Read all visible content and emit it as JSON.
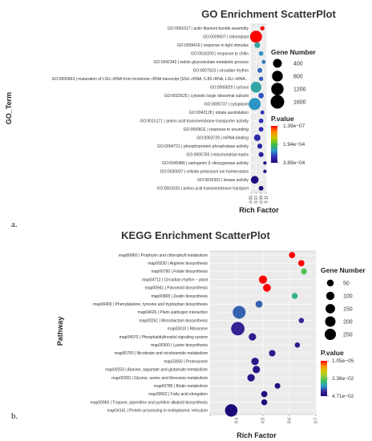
{
  "chart_data": [
    {
      "type": "scatter",
      "panel_label": "a.",
      "title": "GO Enrichment ScatterPlot",
      "xlabel": "Rich Factor",
      "ylabel": "GO_Term",
      "xlim": [
        0.05,
        0.11
      ],
      "x_ticks": [
        0.05,
        0.07,
        0.09,
        0.11
      ],
      "grid": true,
      "terms": [
        {
          "label": "GO:0051017 | actin filament bundle assembly",
          "x": 0.095,
          "gene_number": 60,
          "p_value": 1.39e-07
        },
        {
          "label": "GO:0009507 | chloroplast",
          "x": 0.07,
          "gene_number": 1600,
          "p_value": 1.39e-07
        },
        {
          "label": "GO:0009416 | response to light stimulus",
          "x": 0.075,
          "gene_number": 200,
          "p_value": 2e-05
        },
        {
          "label": "GO:0010200 | response to chitin",
          "x": 0.09,
          "gene_number": 80,
          "p_value": 3e-05
        },
        {
          "label": "GO:0042343 | indole glucosinolate metabolic process",
          "x": 0.1,
          "gene_number": 40,
          "p_value": 4e-05
        },
        {
          "label": "GO:0007623 | circadian rhythm",
          "x": 0.085,
          "gene_number": 100,
          "p_value": 5e-05
        },
        {
          "label": "GO:0000463 | maturation of LSU−rRNA from tricistronic rRNA transcript (SSU−rRNA, 5.8S rRNA, LSU−rRNA...",
          "x": 0.09,
          "gene_number": 60,
          "p_value": 6e-05
        },
        {
          "label": "GO:0005829 | cytosol",
          "x": 0.07,
          "gene_number": 1200,
          "p_value": 2e-05
        },
        {
          "label": "GO:0022625 | cytosolic large ribosomal subunit",
          "x": 0.09,
          "gene_number": 150,
          "p_value": 7e-05
        },
        {
          "label": "GO:0005737 | cytoplasm",
          "x": 0.065,
          "gene_number": 1600,
          "p_value": 3e-05
        },
        {
          "label": "GO:0042128 | nitrate assimilation",
          "x": 0.095,
          "gene_number": 40,
          "p_value": 0.0001
        },
        {
          "label": "GO:0015171 | amino acid transmembrane transporter activity",
          "x": 0.09,
          "gene_number": 80,
          "p_value": 0.00011
        },
        {
          "label": "GO:0009611 | response to wounding",
          "x": 0.09,
          "gene_number": 90,
          "p_value": 0.00012
        },
        {
          "label": "GO:0003729 | mRNA binding",
          "x": 0.075,
          "gene_number": 300,
          "p_value": 0.00013
        },
        {
          "label": "GO:0004721 | phosphoprotein phosphatase activity",
          "x": 0.085,
          "gene_number": 120,
          "p_value": 0.00016
        },
        {
          "label": "GO:0005759 | mitochondrial matrix",
          "x": 0.09,
          "gene_number": 110,
          "p_value": 0.00019
        },
        {
          "label": "GO:0045486 | naringenin 3−dioxygenase activity",
          "x": 0.105,
          "gene_number": 20,
          "p_value": 0.00026
        },
        {
          "label": "GO:0030007 | cellular potassium ion homeostasis",
          "x": 0.105,
          "gene_number": 20,
          "p_value": 0.0003
        },
        {
          "label": "GO:0016301 | kinase activity",
          "x": 0.065,
          "gene_number": 500,
          "p_value": 0.00034
        },
        {
          "label": "GO:0003333 | amino acid transmembrane transport",
          "x": 0.09,
          "gene_number": 90,
          "p_value": 0.000389
        }
      ],
      "size_legend": {
        "title": "Gene Number",
        "values": [
          400,
          800,
          1200,
          1600
        ]
      },
      "color_legend": {
        "title": "P.value",
        "labels": [
          "1.39e−07",
          "1.94e−04",
          "3.89e−04"
        ],
        "min": 1.39e-07,
        "max": 0.000389
      },
      "colors": [
        "#ff0000",
        "#ff8c00",
        "#c8c800",
        "#3cbf3c",
        "#2e9bc6",
        "#3030b8",
        "#1c0878"
      ]
    },
    {
      "type": "scatter",
      "panel_label": "b.",
      "title": "KEGG Enrichment ScatterPlot",
      "xlabel": "Rich Factor",
      "ylabel": "Pathway",
      "xlim": [
        0.3,
        0.7
      ],
      "x_ticks": [
        0.3,
        0.4,
        0.5,
        0.6,
        0.7
      ],
      "x_tick_labels": [
        "",
        "0.4",
        "0.5",
        "0.6",
        "0.7"
      ],
      "grid": true,
      "terms": [
        {
          "label": "map00860 | Porphyrin and chlorophyll metabolism",
          "x": 0.61,
          "gene_number": 35,
          "p_value": 1.05e-05
        },
        {
          "label": "map00220 | Arginine biosynthesis",
          "x": 0.645,
          "gene_number": 35,
          "p_value": 1.05e-05
        },
        {
          "label": "map00790 | Folate biosynthesis",
          "x": 0.655,
          "gene_number": 30,
          "p_value": 0.001
        },
        {
          "label": "map04712 | Circadian rhythm − plant",
          "x": 0.5,
          "gene_number": 80,
          "p_value": 1.05e-05
        },
        {
          "label": "map00941 | Flavonoid biosynthesis",
          "x": 0.515,
          "gene_number": 70,
          "p_value": 1.05e-05
        },
        {
          "label": "map00908 | Zeatin biosynthesis",
          "x": 0.62,
          "gene_number": 30,
          "p_value": 0.002
        },
        {
          "label": "map00400 | Phenylalanine, tyrosine and tryptophan biosynthesis",
          "x": 0.485,
          "gene_number": 50,
          "p_value": 0.008
        },
        {
          "label": "map04626 | Plant−pathogen interaction",
          "x": 0.41,
          "gene_number": 260,
          "p_value": 0.008
        },
        {
          "label": "map00261 | Monobactam biosynthesis",
          "x": 0.645,
          "gene_number": 20,
          "p_value": 0.017
        },
        {
          "label": "map03010 | Ribosome",
          "x": 0.405,
          "gene_number": 290,
          "p_value": 0.02
        },
        {
          "label": "map04070 | Phosphatidylinositol signaling system",
          "x": 0.46,
          "gene_number": 60,
          "p_value": 0.022
        },
        {
          "label": "map00300 | Lysine biosynthesis",
          "x": 0.63,
          "gene_number": 20,
          "p_value": 0.024
        },
        {
          "label": "map00760 | Nicotinate and nicotinamide metabolism",
          "x": 0.535,
          "gene_number": 40,
          "p_value": 0.026
        },
        {
          "label": "map03050 | Proteasome",
          "x": 0.47,
          "gene_number": 60,
          "p_value": 0.028
        },
        {
          "label": "map00250 | Alanine, aspartate and glutamate metabolism",
          "x": 0.475,
          "gene_number": 60,
          "p_value": 0.03
        },
        {
          "label": "map00260 | Glycine, serine and threonine metabolism",
          "x": 0.455,
          "gene_number": 60,
          "p_value": 0.032
        },
        {
          "label": "map00780 | Biotin metabolism",
          "x": 0.555,
          "gene_number": 25,
          "p_value": 0.036
        },
        {
          "label": "map00062 | Fatty acid elongation",
          "x": 0.505,
          "gene_number": 35,
          "p_value": 0.04
        },
        {
          "label": "map00960 | Tropane, piperidine and pyridine alkaloid biosynthesis",
          "x": 0.505,
          "gene_number": 30,
          "p_value": 0.044
        },
        {
          "label": "map04141 | Protein processing in endoplasmic reticulum",
          "x": 0.38,
          "gene_number": 240,
          "p_value": 0.0471
        }
      ],
      "size_legend": {
        "title": "Gene Number",
        "values": [
          50,
          100,
          150,
          200,
          250
        ]
      },
      "color_legend": {
        "title": "P.value",
        "labels": [
          "1.05e−05",
          "2.36e−02",
          "4.71e−02"
        ],
        "min": 1.05e-05,
        "max": 0.0471
      },
      "colors": [
        "#ff0000",
        "#ff8c00",
        "#d8c800",
        "#9ccc3c",
        "#3cbf5c",
        "#2e9bc6",
        "#3c2c9c",
        "#1c0878"
      ]
    }
  ]
}
